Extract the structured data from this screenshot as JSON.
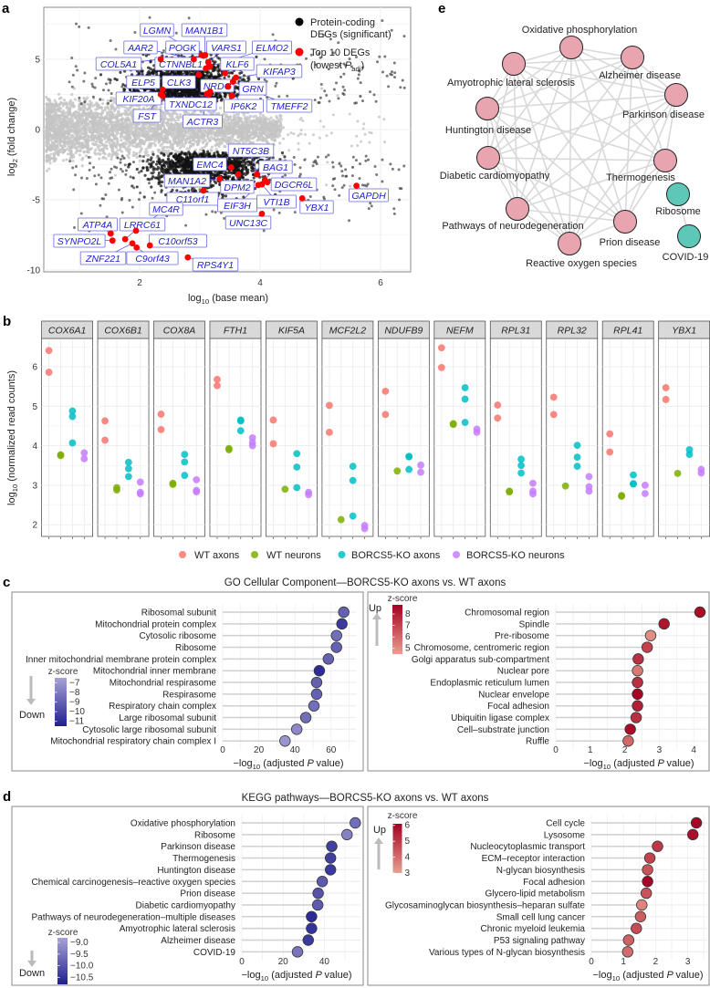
{
  "panel_labels": {
    "a": "a",
    "b": "b",
    "c": "c",
    "d": "d",
    "e": "e"
  },
  "chart_data": [
    {
      "panel": "a",
      "type": "scatter",
      "title": "",
      "xlabel": "log10 (base mean)",
      "ylabel": "log2 (fold change)",
      "xticks": [
        2,
        4,
        6
      ],
      "yticks": [
        5,
        0,
        -5,
        -10
      ],
      "xlim": [
        0.4,
        6.5
      ],
      "ylim": [
        -10.3,
        8.6
      ],
      "grid": true,
      "legend": {
        "placement": "top-right",
        "sig_line1": "Protein-coding",
        "sig_line2": "DEGs (significant)",
        "top_line1": "Top 10 DEGs",
        "top_line2": "(lowest Padj)",
        "sig_color": "#000000",
        "top_color": "#ff0000",
        "nonsig_color": "#bdbdbd"
      },
      "labeled_genes": [
        {
          "gene": "LGMN",
          "x": 3.03,
          "y": 5.3
        },
        {
          "gene": "MAN1B1",
          "x": 3.09,
          "y": 5.3
        },
        {
          "gene": "AAR2",
          "x": 2.9,
          "y": 5.0
        },
        {
          "gene": "POGK",
          "x": 3.06,
          "y": 5.25
        },
        {
          "gene": "VARS1",
          "x": 3.14,
          "y": 4.8
        },
        {
          "gene": "ELMO2",
          "x": 3.17,
          "y": 4.5
        },
        {
          "gene": "COL5A1",
          "x": 2.35,
          "y": 5.0
        },
        {
          "gene": "CTNNBL1",
          "x": 3.1,
          "y": 4.35
        },
        {
          "gene": "KLF6",
          "x": 3.42,
          "y": 4.0
        },
        {
          "gene": "KIFAP3",
          "x": 3.6,
          "y": 3.7
        },
        {
          "gene": "ELP5",
          "x": 2.38,
          "y": 2.85
        },
        {
          "gene": "CLK3",
          "x": 2.98,
          "y": 3.9
        },
        {
          "gene": "NRDC",
          "x": 3.17,
          "y": 2.7
        },
        {
          "gene": "GRN",
          "x": 3.53,
          "y": 2.4
        },
        {
          "gene": "KIF20A",
          "x": 2.38,
          "y": 2.4
        },
        {
          "gene": "TXNDC12",
          "x": 3.15,
          "y": 2.5
        },
        {
          "gene": "IP6K2",
          "x": 3.47,
          "y": 3.05
        },
        {
          "gene": "TMEFF2",
          "x": 3.55,
          "y": 3.4
        },
        {
          "gene": "FST",
          "x": 2.35,
          "y": 2.5
        },
        {
          "gene": "ACTR3",
          "x": 3.12,
          "y": 2.55
        },
        {
          "gene": "NT5C3B",
          "x": 3.95,
          "y": -3.2
        },
        {
          "gene": "EMC4",
          "x": 3.52,
          "y": -2.7
        },
        {
          "gene": "BAG1",
          "x": 4.08,
          "y": -3.6
        },
        {
          "gene": "MAN1A2",
          "x": 3.33,
          "y": -3.5
        },
        {
          "gene": "DPM2",
          "x": 3.64,
          "y": -3.2
        },
        {
          "gene": "DGCR6L",
          "x": 4.12,
          "y": -3.75
        },
        {
          "gene": "C11orf1",
          "x": 3.06,
          "y": -4.35
        },
        {
          "gene": "EIF3H",
          "x": 3.97,
          "y": -3.95
        },
        {
          "gene": "VTI1B",
          "x": 4.03,
          "y": -3.9
        },
        {
          "gene": "YBX1",
          "x": 4.7,
          "y": -4.9
        },
        {
          "gene": "GAPDH",
          "x": 5.6,
          "y": -4.0
        },
        {
          "gene": "MC4R",
          "x": 1.94,
          "y": -7.2
        },
        {
          "gene": "UNC13C",
          "x": 4.03,
          "y": -6.0
        },
        {
          "gene": "ATP4A",
          "x": 1.52,
          "y": -7.4
        },
        {
          "gene": "LRRC61",
          "x": 1.76,
          "y": -7.8
        },
        {
          "gene": "SYNPO2L",
          "x": 1.55,
          "y": -7.9
        },
        {
          "gene": "C10orf53",
          "x": 2.17,
          "y": -8.25
        },
        {
          "gene": "ZNF221",
          "x": 1.88,
          "y": -8.1
        },
        {
          "gene": "C9orf43",
          "x": 1.95,
          "y": -8.4
        },
        {
          "gene": "RPS4Y1",
          "x": 2.8,
          "y": -9.1
        }
      ]
    },
    {
      "panel": "b",
      "type": "scatter",
      "ylabel": "log10 (normalized read counts)",
      "yticks": [
        6,
        5,
        4,
        3,
        2
      ],
      "ylim": [
        1.7,
        6.7
      ],
      "grid": true,
      "legend_placement": "bottom",
      "groups": [
        {
          "key": "wt_axons",
          "name": "WT axons",
          "color": "#f8766d"
        },
        {
          "key": "wt_neurons",
          "name": "WT neurons",
          "color": "#7cae00"
        },
        {
          "key": "ko_axons",
          "name": "BORCS5-KO axons",
          "color": "#00bfc4"
        },
        {
          "key": "ko_neurons",
          "name": "BORCS5-KO neurons",
          "color": "#c77cff"
        }
      ],
      "facets": [
        {
          "gene": "COX6A1",
          "wt_axons": [
            6.41,
            5.86
          ],
          "wt_neurons": [
            3.77,
            3.75
          ],
          "ko_axons": [
            4.88,
            4.74,
            4.07
          ],
          "ko_neurons": [
            3.82,
            3.67
          ]
        },
        {
          "gene": "COX6B1",
          "wt_axons": [
            4.63,
            4.14
          ],
          "wt_neurons": [
            2.94,
            2.88
          ],
          "ko_axons": [
            3.58,
            3.42,
            3.22
          ],
          "ko_neurons": [
            3.08,
            2.82,
            2.78
          ]
        },
        {
          "gene": "COX8A",
          "wt_axons": [
            4.8,
            4.41
          ],
          "wt_neurons": [
            3.05,
            3.02
          ],
          "ko_axons": [
            3.78,
            3.59,
            3.25
          ],
          "ko_neurons": [
            3.14,
            2.87,
            2.83
          ]
        },
        {
          "gene": "FTH1",
          "wt_axons": [
            5.68,
            5.52
          ],
          "wt_neurons": [
            3.93,
            3.9
          ],
          "ko_axons": [
            4.65,
            4.63,
            4.38
          ],
          "ko_neurons": [
            4.2,
            4.08,
            4.0
          ]
        },
        {
          "gene": "KIF5A",
          "wt_axons": [
            4.65,
            4.05
          ],
          "wt_neurons": [
            2.9
          ],
          "ko_axons": [
            3.8,
            3.46,
            2.94
          ],
          "ko_neurons": [
            2.82,
            2.76
          ]
        },
        {
          "gene": "MCF2L2",
          "wt_axons": [
            5.02,
            4.34
          ],
          "wt_neurons": [
            2.13
          ],
          "ko_axons": [
            3.48,
            3.12,
            2.22
          ],
          "ko_neurons": [
            1.98,
            1.9
          ]
        },
        {
          "gene": "NDUFB9",
          "wt_axons": [
            5.38,
            4.79
          ],
          "wt_neurons": [
            3.36
          ],
          "ko_axons": [
            3.73,
            3.72,
            3.4
          ],
          "ko_neurons": [
            3.51,
            3.33
          ]
        },
        {
          "gene": "NEFM",
          "wt_axons": [
            6.48,
            5.98
          ],
          "wt_neurons": [
            4.54,
            4.56
          ],
          "ko_axons": [
            5.47,
            5.18,
            4.59
          ],
          "ko_neurons": [
            4.42,
            4.34
          ]
        },
        {
          "gene": "RPL31",
          "wt_axons": [
            5.03,
            4.7
          ],
          "wt_neurons": [
            2.85,
            2.83
          ],
          "ko_axons": [
            3.66,
            3.5,
            3.31
          ],
          "ko_neurons": [
            3.05,
            2.85,
            2.78
          ]
        },
        {
          "gene": "RPL32",
          "wt_axons": [
            5.23,
            4.79
          ],
          "wt_neurons": [
            2.98
          ],
          "ko_axons": [
            4.01,
            3.71,
            3.48
          ],
          "ko_neurons": [
            3.22,
            2.96,
            2.85
          ]
        },
        {
          "gene": "RPL41",
          "wt_axons": [
            4.3,
            3.84
          ],
          "wt_neurons": [
            2.74,
            2.72
          ],
          "ko_axons": [
            3.26,
            3.04,
            3.03
          ],
          "ko_neurons": [
            3.0,
            2.79
          ]
        },
        {
          "gene": "YBX1",
          "wt_axons": [
            5.47,
            5.17
          ],
          "wt_neurons": [
            3.3
          ],
          "ko_axons": [
            3.9,
            3.78
          ],
          "ko_neurons": [
            3.4,
            3.31
          ]
        }
      ]
    },
    {
      "panel": "c-down",
      "type": "scatter",
      "title": "GO Cellular Component—BORCS5-KO axons vs. WT axons",
      "xlabel": "−log10 (adjusted P value)",
      "xticks": [
        0,
        20,
        40,
        60
      ],
      "xlim": [
        0,
        74
      ],
      "direction": "Down",
      "legend": {
        "title": "z-score",
        "ticks": [
          -7,
          -8,
          -9,
          -10,
          -11
        ],
        "range": [
          -11.5,
          -6.5
        ],
        "placement": "left"
      },
      "categories": [
        "Ribosomal subunit",
        "Mitochondrial protein complex",
        "Cytosolic ribosome",
        "Ribosome",
        "Inner mitochondrial membrane protein complex",
        "Mitochondrial inner membrane",
        "Mitochondrial respirasome",
        "Respirasome",
        "Respiratory chain complex",
        "Large ribosomal subunit",
        "Cytosolic large ribosomal subunit",
        "Mitochondrial respiratory chain complex I"
      ],
      "values": [
        67,
        66,
        63,
        63,
        58.5,
        53.5,
        52,
        52,
        50.5,
        46,
        41,
        34.5
      ],
      "zscores": [
        -9,
        -10.5,
        -8.5,
        -9,
        -9,
        -11,
        -9,
        -9,
        -8.5,
        -8.5,
        -7.5,
        -7
      ]
    },
    {
      "panel": "c-up",
      "type": "scatter",
      "xlabel": "−log10 (adjusted P value)",
      "xticks": [
        0,
        1,
        2,
        3,
        4
      ],
      "xlim": [
        0,
        4.4
      ],
      "direction": "Up",
      "legend": {
        "title": "z-score",
        "ticks": [
          8,
          7,
          6,
          5
        ],
        "range": [
          4.5,
          8.8
        ],
        "placement": "top-left"
      },
      "categories": [
        "Chromosomal region",
        "Spindle",
        "Pre-ribosome",
        "Chromosome, centromeric region",
        "Golgi apparatus sub-compartment",
        "Nuclear pore",
        "Endoplasmic reticulum lumen",
        "Nuclear envelope",
        "Focal adhesion",
        "Ubiquitin ligase complex",
        "Cell–substrate junction",
        "Ruffle"
      ],
      "values": [
        4.18,
        3.14,
        2.75,
        2.65,
        2.39,
        2.37,
        2.37,
        2.37,
        2.37,
        2.33,
        2.16,
        2.1
      ],
      "zscores": [
        8.5,
        8.2,
        5.0,
        7.0,
        7.5,
        5.5,
        7.5,
        8.7,
        8.0,
        7.5,
        8.5,
        6.0
      ]
    },
    {
      "panel": "d-down",
      "type": "scatter",
      "title": "KEGG pathways—BORCS5-KO axons vs. WT axons",
      "xlabel": "−log10 (adjusted P value)",
      "xticks": [
        0,
        20,
        40
      ],
      "xlim": [
        0,
        57.5
      ],
      "direction": "Down",
      "legend": {
        "title": "z-score",
        "ticks": [
          -9.0,
          -9.5,
          -10.0,
          -10.5
        ],
        "tick_labels": [
          "−9.0",
          "−9.5",
          "−10.0",
          "−10.5"
        ],
        "range": [
          -10.8,
          -8.8
        ],
        "placement": "bottom-left"
      },
      "categories": [
        "Oxidative phosphorylation",
        "Ribosome",
        "Parkinson disease",
        "Thermogenesis",
        "Huntington disease",
        "Chemical carcinogenesis–reactive oxygen species",
        "Prion disease",
        "Diabetic cardiomyopathy",
        "Pathways of neurodegeneration–multiple diseases",
        "Amyotrophic lateral sclerosis",
        "Alzheimer disease",
        "COVID-19"
      ],
      "values": [
        55,
        51,
        43.6,
        43,
        43,
        39,
        37,
        36.8,
        33.8,
        33.8,
        32.2,
        27
      ],
      "zscores": [
        -9.6,
        -9.3,
        -10.3,
        -10.3,
        -10.4,
        -9.9,
        -10.0,
        -9.9,
        -10.6,
        -10.5,
        -10.4,
        -9.5
      ]
    },
    {
      "panel": "d-up",
      "type": "scatter",
      "xlabel": "−log10 (adjusted P value)",
      "xticks": [
        0,
        1,
        2,
        3
      ],
      "xlim": [
        0,
        3.6
      ],
      "direction": "Up",
      "legend": {
        "title": "z-score",
        "ticks": [
          6,
          5,
          4,
          3
        ],
        "range": [
          3,
          6.1
        ],
        "placement": "top-left"
      },
      "categories": [
        "Cell cycle",
        "Lysosome",
        "Nucleocytoplasmic transport",
        "ECM–receptor interaction",
        "N-glycan biosynthesis",
        "Focal adhesion",
        "Glycero-lipid metabolism",
        "Glycosaminoglycan biosynthesis–heparan sulfate",
        "Small cell lung cancer",
        "Chronic myeloid leukemia",
        "P53 signaling pathway",
        "Various types of N-glycan biosynthesis"
      ],
      "values": [
        3.27,
        3.16,
        2.06,
        1.82,
        1.75,
        1.75,
        1.71,
        1.57,
        1.53,
        1.4,
        1.16,
        1.13
      ],
      "zscores": [
        6.0,
        5.8,
        5.0,
        4.8,
        4.5,
        6.0,
        4.5,
        3.5,
        4.3,
        4.6,
        4.2,
        4.0
      ]
    },
    {
      "panel": "e",
      "type": "network",
      "nodes": [
        {
          "name": "Oxidative phosphorylation",
          "cluster": 1,
          "color": "#e8a5b0"
        },
        {
          "name": "Alzheimer disease",
          "cluster": 1,
          "color": "#e8a5b0"
        },
        {
          "name": "Parkinson disease",
          "cluster": 1,
          "color": "#e8a5b0"
        },
        {
          "name": "Thermogenesis",
          "cluster": 1,
          "color": "#e8a5b0"
        },
        {
          "name": "Prion disease",
          "cluster": 1,
          "color": "#e8a5b0"
        },
        {
          "name": "Reactive oxygen species",
          "cluster": 1,
          "color": "#e8a5b0"
        },
        {
          "name": "Pathways of neurodegeneration",
          "cluster": 1,
          "color": "#e8a5b0"
        },
        {
          "name": "Diabetic cardiomyopathy",
          "cluster": 1,
          "color": "#e8a5b0"
        },
        {
          "name": "Huntington disease",
          "cluster": 1,
          "color": "#e8a5b0"
        },
        {
          "name": "Amyotrophic lateral sclerosis",
          "cluster": 1,
          "color": "#e8a5b0"
        },
        {
          "name": "Ribosome",
          "cluster": 2,
          "color": "#5ec8b8"
        },
        {
          "name": "COVID-19",
          "cluster": 2,
          "color": "#5ec8b8"
        }
      ],
      "edges_rule": "complete within cluster",
      "edge_color": "#d9d9d9"
    }
  ]
}
